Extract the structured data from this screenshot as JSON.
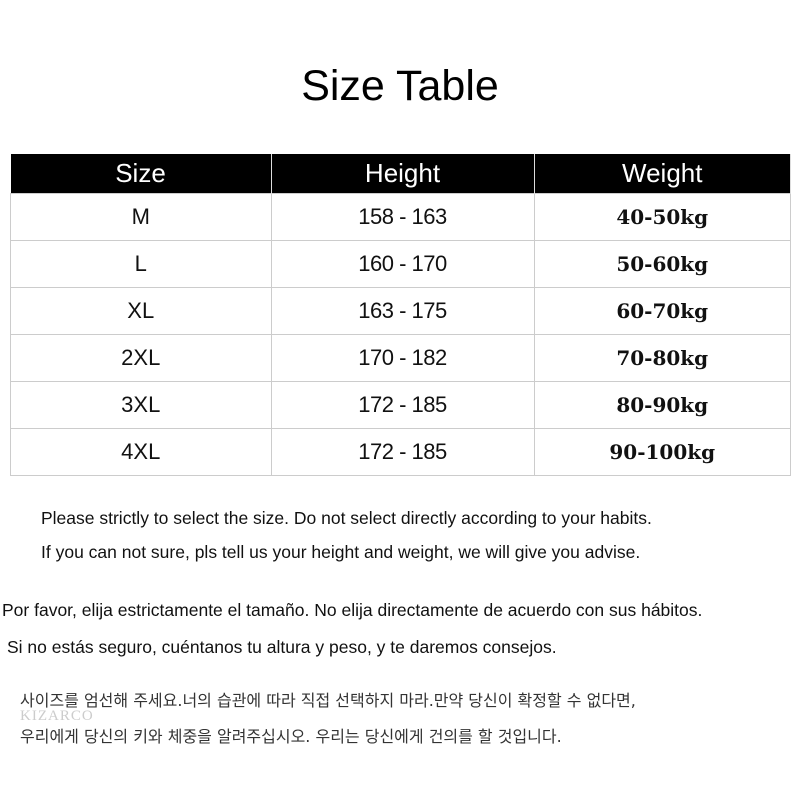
{
  "title": "Size Table",
  "table": {
    "headers": [
      "Size",
      "Height",
      "Weight"
    ],
    "rows": [
      [
        "M",
        "158 - 163",
        "40-50kg"
      ],
      [
        "L",
        "160 - 170",
        "50-60kg"
      ],
      [
        "XL",
        "163 - 175",
        "60-70kg"
      ],
      [
        "2XL",
        "170 - 182",
        "70-80kg"
      ],
      [
        "3XL",
        "172 - 185",
        "80-90kg"
      ],
      [
        "4XL",
        "172 - 185",
        "90-100kg"
      ]
    ]
  },
  "notes": {
    "en1": "Please strictly to select the size. Do not select directly according to your habits.",
    "en2": "If you can not sure, pls tell us your height and weight, we will give you advise.",
    "es1": "Por favor, elija estrictamente el tamaño. No elija directamente de acuerdo con sus hábitos.",
    "es2": "Si no estás seguro, cuéntanos tu altura y peso, y te daremos consejos.",
    "ko1": "사이즈를 엄선해 주세요.너의 습관에 따라 직접 선택하지 마라.만약 당신이 확정할 수 없다면,",
    "ko2": "우리에게 당신의 키와 체중을 알려주십시오. 우리는 당신에게 건의를 할 것입니다."
  },
  "watermark": "KIZARCO"
}
